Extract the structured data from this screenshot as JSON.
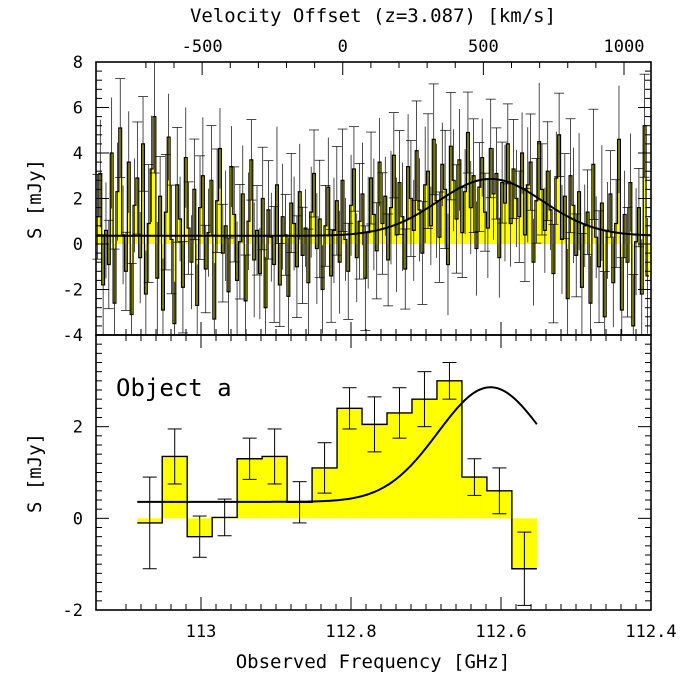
{
  "chart_data": {
    "type": "bar",
    "top_axis": {
      "label": "Velocity Offset (z=3.087) [km/s]",
      "ticks": [
        "-500",
        "0",
        "500",
        "1000"
      ],
      "tick_values": [
        -500,
        0,
        500,
        1000
      ]
    },
    "bottom_axis": {
      "label": "Observed Frequency [GHz]",
      "ticks": [
        "113",
        "112.8",
        "112.6",
        "112.4"
      ],
      "tick_values": [
        113.0,
        112.8,
        112.6,
        112.4
      ],
      "xlim": [
        113.14,
        112.4
      ]
    },
    "panels": [
      {
        "ylabel": "S [mJy]",
        "ylim": [
          -4,
          8
        ],
        "yticks": [
          "-4",
          "-2",
          "0",
          "2",
          "4",
          "6",
          "8"
        ],
        "ytick_values": [
          -4,
          -2,
          0,
          2,
          4,
          6,
          8
        ],
        "annotation": "",
        "x_start": 113.14,
        "channel_width": 0.0038,
        "values": [
          1.2,
          3.1,
          -1.8,
          0.6,
          -0.9,
          4.0,
          -2.6,
          2.3,
          5.1,
          0.4,
          -1.2,
          3.6,
          -3.1,
          1.7,
          2.9,
          -0.6,
          4.4,
          -2.2,
          0.9,
          3.3,
          5.6,
          -1.5,
          2.1,
          -2.9,
          1.4,
          4.7,
          0.2,
          -3.5,
          2.6,
          1.1,
          -1.9,
          3.8,
          0.7,
          -0.8,
          2.4,
          -2.7,
          1.6,
          3.0,
          -1.1,
          0.5,
          2.8,
          -3.3,
          1.9,
          4.2,
          -0.4,
          0.8,
          -2.1,
          3.4,
          1.3,
          -1.6,
          0.1,
          2.2,
          -2.5,
          1.0,
          3.7,
          -0.7,
          0.6,
          -1.3,
          2.0,
          -2.8,
          1.5,
          0.3,
          -0.9,
          2.6,
          -1.8,
          1.2,
          0.4,
          -2.3,
          1.8,
          0.9,
          -1.0,
          2.3,
          -0.5,
          0.7,
          -1.7,
          1.4,
          3.1,
          -0.2,
          1.1,
          -2.0,
          0.8,
          2.5,
          -1.4,
          0.6,
          1.9,
          -0.8,
          2.8,
          0.2,
          -1.2,
          1.7,
          3.3,
          -0.6,
          1.0,
          2.2,
          -1.5,
          0.5,
          2.9,
          1.3,
          -0.3,
          3.6,
          0.9,
          2.1,
          -0.7,
          1.6,
          3.9,
          0.4,
          2.7,
          1.2,
          -1.1,
          3.4,
          2.0,
          0.6,
          4.1,
          1.5,
          -0.4,
          2.6,
          3.2,
          0.8,
          4.6,
          1.9,
          0.3,
          3.5,
          2.4,
          -0.9,
          4.3,
          2.8,
          1.1,
          3.7,
          0.5,
          2.3,
          4.9,
          1.6,
          3.0,
          -0.2,
          2.5,
          3.8,
          1.4,
          0.7,
          4.2,
          2.2,
          3.1,
          -0.6,
          2.7,
          1.8,
          4.4,
          0.9,
          3.3,
          2.0,
          1.2,
          4.0,
          0.4,
          2.6,
          3.6,
          -0.8,
          1.9,
          4.5,
          2.4,
          0.6,
          3.2,
          1.5,
          -1.3,
          2.9,
          4.8,
          0.2,
          2.1,
          -2.4,
          3.0,
          1.7,
          -0.5,
          2.3,
          -1.9,
          0.8,
          1.4,
          -2.6,
          3.5,
          0.3,
          -1.0,
          1.8,
          -3.2,
          0.6,
          2.2,
          -1.7,
          0.9,
          4.6,
          -2.9,
          1.3,
          -0.8,
          2.7,
          -3.6,
          0.1,
          1.6,
          -2.2,
          5.2,
          -1.4
        ]
      },
      {
        "ylabel": "S [mJy]",
        "ylim": [
          -2,
          4
        ],
        "yticks": [
          "-2",
          "0",
          "2"
        ],
        "ytick_values": [
          -2,
          0,
          2
        ],
        "annotation": "Object a",
        "x_start": 113.085,
        "channel_width": 0.0333,
        "values": [
          -0.1,
          1.35,
          -0.4,
          0.02,
          1.3,
          1.35,
          0.35,
          1.1,
          2.4,
          2.05,
          2.3,
          2.6,
          3.0,
          0.9,
          0.6,
          -1.1
        ],
        "errors": [
          1.0,
          0.6,
          0.45,
          0.4,
          0.45,
          0.6,
          0.45,
          0.55,
          0.45,
          0.6,
          0.55,
          0.6,
          0.4,
          0.4,
          0.5,
          0.8
        ]
      }
    ],
    "gaussian_fit": {
      "baseline": 0.36,
      "amplitude": 2.5,
      "center": 112.614,
      "sigma": 0.07
    }
  }
}
